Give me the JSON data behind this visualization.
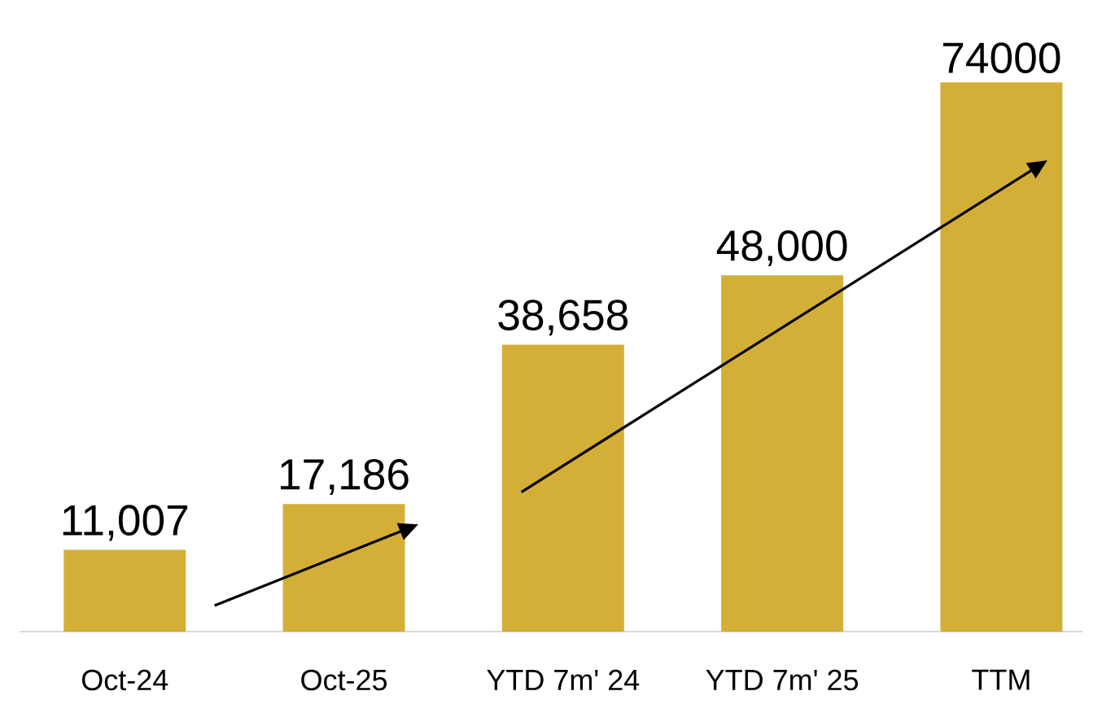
{
  "chart_data": {
    "type": "bar",
    "categories": [
      "Oct-24",
      "Oct-25",
      "YTD 7m' 24",
      "YTD 7m' 25",
      "TTM"
    ],
    "values": [
      11007,
      17186,
      38658,
      48000,
      74000
    ],
    "value_labels": [
      "11,007",
      "17,186",
      "38,658",
      "48,000",
      "74000"
    ],
    "color": "#d4af37"
  }
}
